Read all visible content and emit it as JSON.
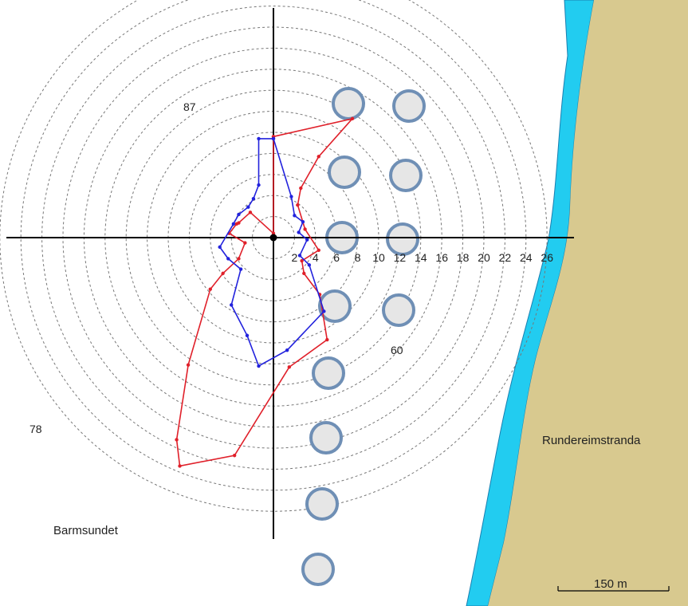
{
  "colors": {
    "background": "#ffffff",
    "land": "#d8c98f",
    "water_strip": "#22ccf0",
    "shore_line": "#1a7fb0",
    "rings": "#777777",
    "axes": "#000000",
    "cage_fill": "#e6e6e6",
    "cage_stroke": "#6f8fb5",
    "series_red": "#e0202a",
    "series_blue": "#2222dd"
  },
  "icons": {
    "origin": "filled-circle-marker",
    "cage": "circle-cage",
    "scale_bar": "scale-bar"
  },
  "axis_ticks": [
    "2",
    "4",
    "6",
    "8",
    "10",
    "12",
    "14",
    "16",
    "18",
    "20",
    "22",
    "24",
    "26"
  ],
  "depth_labels": {
    "d87": "87",
    "d60": "60",
    "d78": "78"
  },
  "places": {
    "shore": "Rundereimstranda",
    "sound": "Barmsundet"
  },
  "scale_bar": {
    "label": "150 m"
  },
  "chart_data": {
    "type": "polar-line",
    "radial_max": 26,
    "ring_step": 2,
    "grid": true,
    "series": [
      {
        "color": "red",
        "points": [
          [
            0,
            9.6
          ],
          [
            7.5,
            11.3
          ],
          [
            4.3,
            7.7
          ],
          [
            2.6,
            4.7
          ],
          [
            2.3,
            3.1
          ],
          [
            3.0,
            0.8
          ],
          [
            4.3,
            -1.2
          ],
          [
            2.7,
            -2.2
          ],
          [
            2.9,
            -3.4
          ],
          [
            4.4,
            -5.4
          ],
          [
            5.1,
            -9.7
          ],
          [
            1.5,
            -12.3
          ],
          [
            -3.7,
            -20.7
          ],
          [
            -8.9,
            -21.7
          ],
          [
            -9.2,
            -19.2
          ],
          [
            -8.1,
            -12.1
          ],
          [
            -6.0,
            -4.9
          ],
          [
            -4.8,
            -3.4
          ],
          [
            -3.3,
            -2.0
          ],
          [
            -2.7,
            -0.5
          ],
          [
            -4.2,
            0.4
          ],
          [
            -3.5,
            1.3
          ],
          [
            -3.3,
            1.4
          ],
          [
            -2.2,
            2.4
          ],
          [
            0,
            0.4
          ],
          [
            0,
            9.6
          ]
        ]
      },
      {
        "color": "blue",
        "points": [
          [
            0,
            9.4
          ],
          [
            -1.4,
            9.4
          ],
          [
            -1.4,
            5.0
          ],
          [
            -1.9,
            3.7
          ],
          [
            -2.4,
            2.9
          ],
          [
            -3.3,
            2.2
          ],
          [
            -3.8,
            1.3
          ],
          [
            -5.1,
            -0.9
          ],
          [
            -4.3,
            -2.0
          ],
          [
            -3.1,
            -3.0
          ],
          [
            -4.0,
            -6.4
          ],
          [
            -2.5,
            -9.3
          ],
          [
            -1.4,
            -12.2
          ],
          [
            1.3,
            -10.7
          ],
          [
            4.8,
            -7.0
          ],
          [
            3.4,
            -2.6
          ],
          [
            2.5,
            -1.7
          ],
          [
            3.2,
            -0.2
          ],
          [
            2.4,
            0.5
          ],
          [
            2.8,
            1.5
          ],
          [
            2.0,
            2.1
          ],
          [
            1.7,
            3.9
          ],
          [
            0,
            9.4
          ]
        ]
      }
    ]
  }
}
